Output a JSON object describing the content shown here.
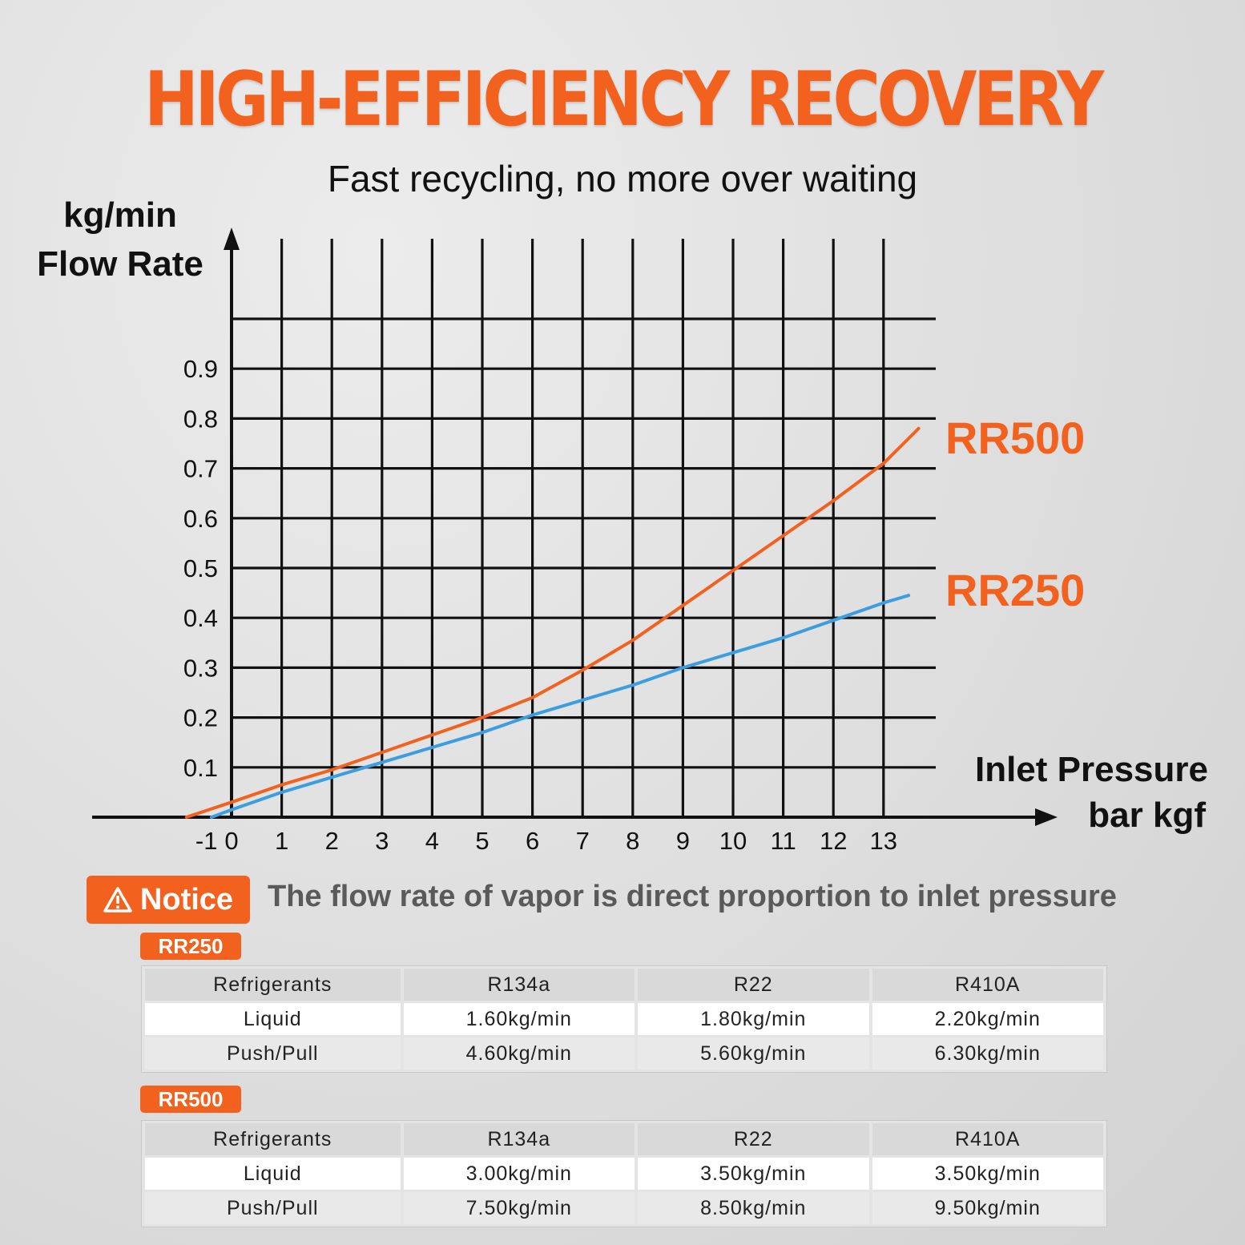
{
  "header": {
    "title": "HIGH-EFFICIENCY RECOVERY",
    "subtitle": "Fast recycling, no more over waiting"
  },
  "chart_data": {
    "type": "line",
    "ylabel_unit": "kg/min",
    "ylabel": "Flow Rate",
    "xlabel": "Inlet Pressure",
    "xlabel_unit": "bar kgf",
    "x_ticks": [
      "-1",
      "0",
      "1",
      "2",
      "3",
      "4",
      "5",
      "6",
      "7",
      "8",
      "9",
      "10",
      "11",
      "12",
      "13"
    ],
    "y_ticks": [
      "0.1",
      "0.2",
      "0.3",
      "0.4",
      "0.5",
      "0.6",
      "0.7",
      "0.8",
      "0.9"
    ],
    "xlim": [
      -1,
      14
    ],
    "ylim": [
      0,
      1.0
    ],
    "grid": true,
    "series": [
      {
        "name": "RR500",
        "color": "#f2611d",
        "x": [
          -0.9,
          0,
          1,
          2,
          3,
          4,
          5,
          6,
          7,
          8,
          9,
          10,
          11,
          12,
          13,
          13.7
        ],
        "y": [
          0,
          0.03,
          0.065,
          0.095,
          0.13,
          0.165,
          0.2,
          0.24,
          0.295,
          0.355,
          0.425,
          0.495,
          0.565,
          0.635,
          0.71,
          0.78
        ]
      },
      {
        "name": "RR250",
        "color": "#3c9ee0",
        "x": [
          -0.4,
          0,
          1,
          2,
          3,
          4,
          5,
          6,
          7,
          8,
          9,
          10,
          11,
          12,
          13,
          13.5
        ],
        "y": [
          0,
          0.015,
          0.05,
          0.08,
          0.11,
          0.14,
          0.17,
          0.205,
          0.235,
          0.265,
          0.3,
          0.33,
          0.36,
          0.395,
          0.43,
          0.445
        ]
      }
    ]
  },
  "notice": {
    "icon": "warning-icon",
    "label": "Notice",
    "text": "The flow rate of vapor is direct proportion to inlet pressure"
  },
  "tables": [
    {
      "badge": "RR250",
      "headers": [
        "Refrigerants",
        "R134a",
        "R22",
        "R410A"
      ],
      "rows": [
        [
          "Liquid",
          "1.60kg/min",
          "1.80kg/min",
          "2.20kg/min"
        ],
        [
          "Push/Pull",
          "4.60kg/min",
          "5.60kg/min",
          "6.30kg/min"
        ]
      ]
    },
    {
      "badge": "RR500",
      "headers": [
        "Refrigerants",
        "R134a",
        "R22",
        "R410A"
      ],
      "rows": [
        [
          "Liquid",
          "3.00kg/min",
          "3.50kg/min",
          "3.50kg/min"
        ],
        [
          "Push/Pull",
          "7.50kg/min",
          "8.50kg/min",
          "9.50kg/min"
        ]
      ]
    }
  ]
}
